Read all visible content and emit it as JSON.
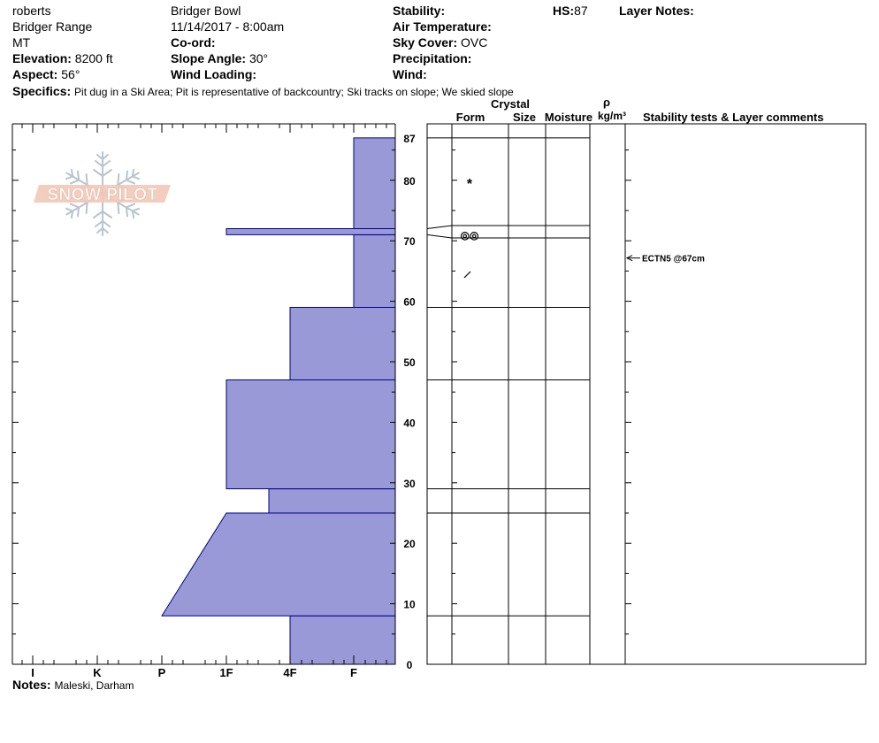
{
  "header": {
    "observer": "roberts",
    "range": "Bridger Range",
    "state": "MT",
    "elevation_label": "Elevation:",
    "elevation_value": "8200 ft",
    "aspect_label": "Aspect:",
    "aspect_value": "56°",
    "location": "Bridger Bowl",
    "datetime": "11/14/2017 - 8:00am",
    "coord_label": "Co-ord:",
    "slope_label": "Slope Angle:",
    "slope_value": "30°",
    "wind_loading_label": "Wind Loading:",
    "stability_label": "Stability:",
    "air_temp_label": "Air Temperature:",
    "sky_label": "Sky Cover:",
    "sky_value": "OVC",
    "precip_label": "Precipitation:",
    "wind_label": "Wind:",
    "hs_label": "HS:",
    "hs_value": "87",
    "layer_notes_label": "Layer Notes:"
  },
  "specifics": {
    "label": "Specifics:",
    "value": "Pit dug in a Ski Area;  Pit is representative of backcountry;  Ski tracks on slope;  We skied slope"
  },
  "notes": {
    "label": "Notes:",
    "value": "Maleski, Darham"
  },
  "logo": {
    "text": "SNOW PILOT",
    "color": "#f2c9b8"
  },
  "columns": {
    "crystal": "Crystal",
    "form": "Form",
    "size": "Size",
    "moisture": "Moisture",
    "rho": "ρ",
    "density_unit": "kg/m³",
    "stability": "Stability tests & Layer comments"
  },
  "chart_data": {
    "type": "area",
    "xlabels": [
      "I",
      "K",
      "P",
      "1F",
      "4F",
      "F"
    ],
    "y_ticks": [
      0,
      10,
      20,
      30,
      40,
      50,
      60,
      70,
      80,
      87
    ],
    "ylim": [
      0,
      87
    ],
    "fill_color": "#9999d8",
    "edge_color": "#00008b",
    "layers": [
      {
        "bottom": 0,
        "top": 8,
        "hardness_bottom": "4F",
        "hardness_top": "4F"
      },
      {
        "bottom": 8,
        "top": 25,
        "hardness_bottom": "P",
        "hardness_top": "1F"
      },
      {
        "bottom": 25,
        "top": 29,
        "hardness_bottom": "4F-",
        "hardness_top": "4F-"
      },
      {
        "bottom": 29,
        "top": 47,
        "hardness_bottom": "1F",
        "hardness_top": "1F"
      },
      {
        "bottom": 47,
        "top": 59,
        "hardness_bottom": "4F",
        "hardness_top": "4F"
      },
      {
        "bottom": 59,
        "top": 71,
        "hardness_bottom": "F",
        "hardness_top": "F"
      },
      {
        "bottom": 71,
        "top": 72,
        "hardness_bottom": "1F",
        "hardness_top": "1F"
      },
      {
        "bottom": 72,
        "top": 87,
        "hardness_bottom": "F",
        "hardness_top": "F"
      }
    ],
    "layer_boundaries": [
      8,
      25,
      29,
      47,
      59,
      71,
      72,
      87
    ],
    "grain_forms": [
      {
        "depth": 80,
        "symbol": "*"
      },
      {
        "depth": 71.5,
        "symbol": "◎◎"
      },
      {
        "depth": 65,
        "symbol": "⁄"
      }
    ],
    "tests": [
      {
        "depth": 67,
        "label": "ECTN5 @67cm"
      }
    ]
  }
}
